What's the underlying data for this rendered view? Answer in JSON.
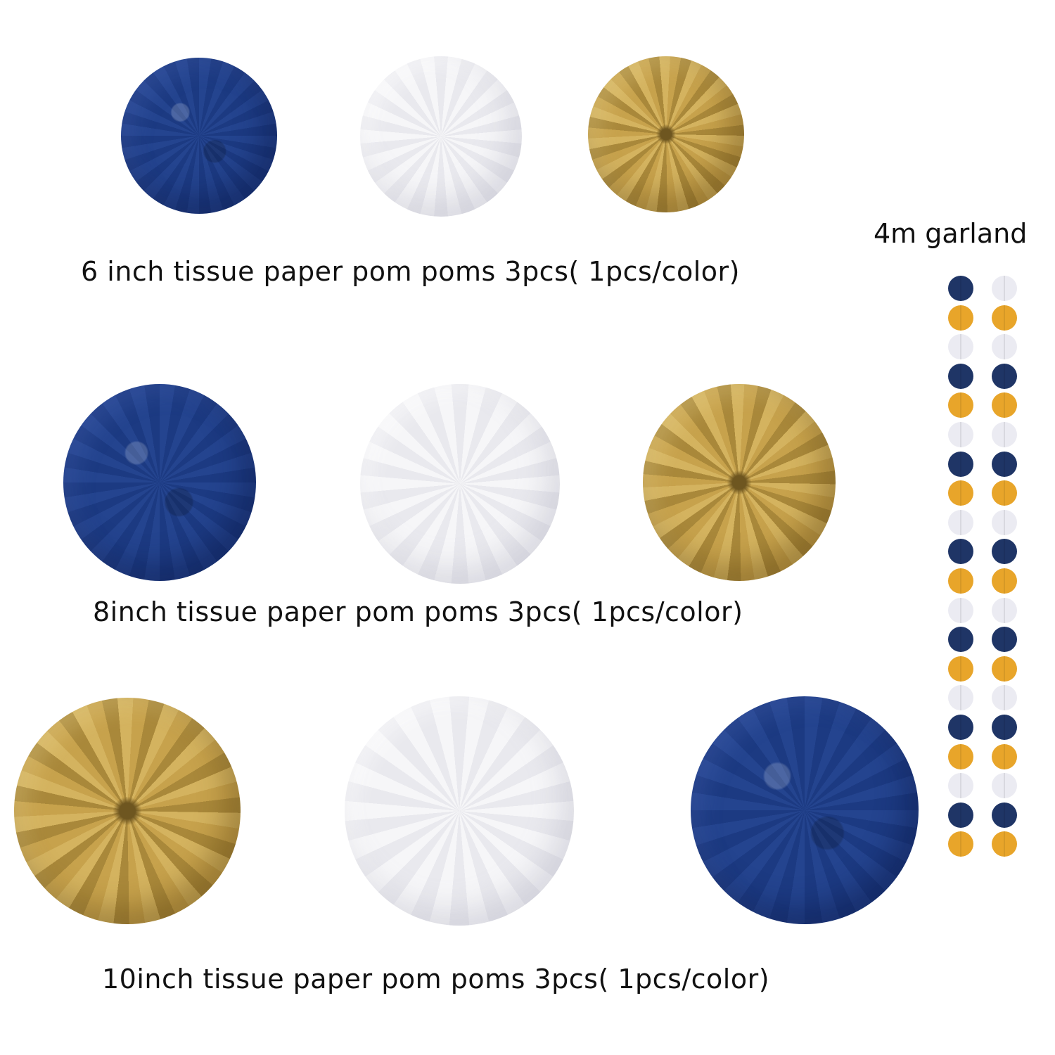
{
  "rows": [
    {
      "caption": "6 inch tissue paper pom poms 3pcs( 1pcs/color)",
      "poms": [
        {
          "name": "pom-6in-navy",
          "color": "navy"
        },
        {
          "name": "pom-6in-white",
          "color": "white"
        },
        {
          "name": "pom-6in-gold",
          "color": "gold"
        }
      ]
    },
    {
      "caption": "8inch tissue paper pom poms 3pcs( 1pcs/color)",
      "poms": [
        {
          "name": "pom-8in-navy",
          "color": "navy"
        },
        {
          "name": "pom-8in-white",
          "color": "white"
        },
        {
          "name": "pom-8in-gold",
          "color": "gold"
        }
      ]
    },
    {
      "caption": "10inch tissue paper pom poms 3pcs( 1pcs/color)",
      "poms": [
        {
          "name": "pom-10in-gold",
          "color": "gold"
        },
        {
          "name": "pom-10in-white",
          "color": "white"
        },
        {
          "name": "pom-10in-navy",
          "color": "navy"
        }
      ]
    }
  ],
  "garland": {
    "label": "4m garland",
    "colors": {
      "navy": "#1f3566",
      "gold": "#e8a52a",
      "white": "#ebebf2"
    },
    "strands": [
      [
        "navy",
        "gold",
        "white",
        "navy",
        "gold",
        "white",
        "navy",
        "gold",
        "white",
        "navy",
        "gold",
        "white",
        "navy",
        "gold",
        "white",
        "navy",
        "gold",
        "white",
        "navy",
        "gold"
      ],
      [
        "white",
        "gold",
        "white",
        "navy",
        "gold",
        "white",
        "navy",
        "gold",
        "white",
        "navy",
        "gold",
        "white",
        "navy",
        "gold",
        "white",
        "navy",
        "gold",
        "white",
        "navy",
        "gold"
      ]
    ]
  }
}
